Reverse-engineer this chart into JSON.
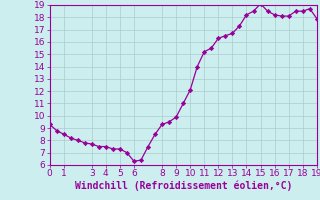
{
  "x": [
    0,
    0.5,
    1,
    1.5,
    2,
    2.5,
    3,
    3.5,
    4,
    4.5,
    5,
    5.5,
    6,
    6.5,
    7,
    7.5,
    8,
    8.5,
    9,
    9.5,
    10,
    10.5,
    11,
    11.5,
    12,
    12.5,
    13,
    13.5,
    14,
    14.5,
    15,
    15.5,
    16,
    16.5,
    17,
    17.5,
    18,
    18.5,
    19
  ],
  "y": [
    9.3,
    8.8,
    8.5,
    8.2,
    8.0,
    7.8,
    7.7,
    7.5,
    7.5,
    7.3,
    7.3,
    7.0,
    6.3,
    6.4,
    7.5,
    8.5,
    9.3,
    9.5,
    9.9,
    11.0,
    12.1,
    14.0,
    15.2,
    15.5,
    16.3,
    16.5,
    16.7,
    17.3,
    18.2,
    18.5,
    19.1,
    18.5,
    18.2,
    18.1,
    18.1,
    18.5,
    18.5,
    18.7,
    17.9
  ],
  "line_color": "#990099",
  "marker_color": "#990099",
  "bg_color": "#cceeee",
  "grid_color": "#aacccc",
  "xlabel": "Windchill (Refroidissement éolien,°C)",
  "xlabel_color": "#990099",
  "tick_color": "#990099",
  "xlim": [
    0,
    19
  ],
  "ylim": [
    6,
    19
  ],
  "xticks": [
    0,
    1,
    3,
    4,
    5,
    6,
    8,
    9,
    10,
    11,
    12,
    13,
    14,
    15,
    16,
    17,
    18,
    19
  ],
  "yticks": [
    6,
    7,
    8,
    9,
    10,
    11,
    12,
    13,
    14,
    15,
    16,
    17,
    18,
    19
  ],
  "font_size": 6.5,
  "xlabel_fontsize": 7
}
